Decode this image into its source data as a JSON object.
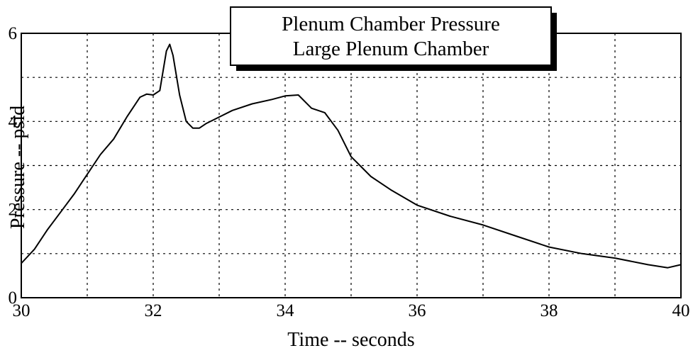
{
  "chart_data": {
    "type": "line",
    "title": "Plenum Chamber Pressure",
    "subtitle": "Large Plenum Chamber",
    "xlabel": "Time -- seconds",
    "ylabel": "Pressure -- psid",
    "x": [
      30.0,
      30.2,
      30.4,
      30.6,
      30.8,
      31.0,
      31.2,
      31.4,
      31.6,
      31.8,
      31.9,
      32.0,
      32.1,
      32.2,
      32.25,
      32.3,
      32.4,
      32.5,
      32.6,
      32.7,
      32.8,
      33.0,
      33.2,
      33.5,
      33.8,
      34.0,
      34.2,
      34.4,
      34.6,
      34.8,
      35.0,
      35.3,
      35.6,
      36.0,
      36.5,
      37.0,
      37.5,
      38.0,
      38.5,
      39.0,
      39.5,
      39.8,
      40.0
    ],
    "values": [
      0.78,
      1.1,
      1.55,
      1.95,
      2.35,
      2.8,
      3.25,
      3.6,
      4.1,
      4.55,
      4.62,
      4.6,
      4.7,
      5.6,
      5.75,
      5.5,
      4.6,
      4.0,
      3.85,
      3.85,
      3.95,
      4.1,
      4.25,
      4.4,
      4.5,
      4.58,
      4.6,
      4.3,
      4.2,
      3.8,
      3.2,
      2.75,
      2.45,
      2.1,
      1.85,
      1.65,
      1.4,
      1.15,
      1.0,
      0.9,
      0.75,
      0.68,
      0.75
    ],
    "color": "#000000",
    "xlim": [
      30,
      40
    ],
    "xticks": [
      30,
      32,
      34,
      36,
      38,
      40
    ],
    "minor_xticks": [
      31,
      33,
      35,
      37,
      39
    ],
    "ylim": [
      0,
      6
    ],
    "yticks": [
      0,
      2,
      4,
      6
    ],
    "minor_yticks": [
      1,
      3,
      5
    ],
    "grid": true
  }
}
